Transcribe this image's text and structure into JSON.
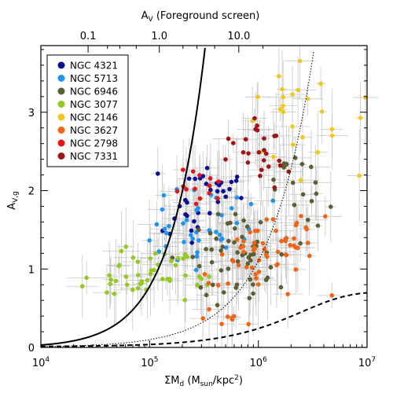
{
  "chart_data": {
    "type": "scatter",
    "title": "",
    "x_axis": {
      "label_main": "ΣM",
      "label_main_sub": "d",
      "label_unit_open": " (M",
      "label_unit_sub": "sun",
      "label_unit_mid": "/kpc",
      "label_unit_sup": "2",
      "label_unit_close": ")",
      "scale": "log",
      "range": [
        10000,
        10000000
      ],
      "tick_base": "10",
      "tick_exponents": [
        "4",
        "5",
        "6",
        "7"
      ]
    },
    "y_axis": {
      "label_main": "A",
      "label_sub": "V,g",
      "range": [
        0,
        3.85
      ],
      "ticks": [
        "0",
        "1",
        "2",
        "3"
      ]
    },
    "top_axis": {
      "label_main": "A",
      "label_sub": "V",
      "label_rest": " (Foreground screen)",
      "ticks": [
        "0.1",
        "1.0",
        "10.0"
      ]
    },
    "legend": {
      "position": "top-left",
      "entries": [
        {
          "name": "NGC  4321",
          "color": "#0a0f96"
        },
        {
          "name": "NGC  5713",
          "color": "#1e96ee"
        },
        {
          "name": "NGC  6946",
          "color": "#5e5e34"
        },
        {
          "name": "NGC  3077",
          "color": "#96c822"
        },
        {
          "name": "NGC  2146",
          "color": "#f0c81e"
        },
        {
          "name": "NGC  3627",
          "color": "#f06414"
        },
        {
          "name": "NGC  2798",
          "color": "#e61414"
        },
        {
          "name": "NGC  7331",
          "color": "#a01414"
        }
      ]
    },
    "series": [
      {
        "name": "NGC  4321",
        "color": "#0a0f96",
        "clusters": [
          {
            "x": 400000,
            "y": 2.05,
            "dex": 0.2,
            "dy": 0.18,
            "n": 22
          },
          {
            "x": 190000,
            "y": 1.6,
            "dex": 0.12,
            "dy": 0.15,
            "n": 12
          }
        ]
      },
      {
        "name": "NGC  5713",
        "color": "#1e96ee",
        "clusters": [
          {
            "x": 300000,
            "y": 1.5,
            "dex": 0.28,
            "dy": 0.25,
            "n": 40
          }
        ]
      },
      {
        "name": "NGC  6946",
        "color": "#5e5e34",
        "clusters": [
          {
            "x": 700000,
            "y": 1.15,
            "dex": 0.22,
            "dy": 0.28,
            "n": 55
          },
          {
            "x": 2000000,
            "y": 2.0,
            "dex": 0.18,
            "dy": 0.28,
            "n": 18
          }
        ]
      },
      {
        "name": "NGC  3077",
        "color": "#96c822",
        "clusters": [
          {
            "x": 130000,
            "y": 0.95,
            "dex": 0.28,
            "dy": 0.18,
            "n": 42
          },
          {
            "x": 40000,
            "y": 0.85,
            "dex": 0.12,
            "dy": 0.1,
            "n": 6
          }
        ]
      },
      {
        "name": "NGC  2146",
        "color": "#f0c81e",
        "clusters": [
          {
            "x": 2500000,
            "y": 2.9,
            "dex": 0.25,
            "dy": 0.35,
            "n": 26
          }
        ]
      },
      {
        "name": "NGC  3627",
        "color": "#f06414",
        "clusters": [
          {
            "x": 1000000,
            "y": 1.2,
            "dex": 0.25,
            "dy": 0.3,
            "n": 60
          },
          {
            "x": 550000,
            "y": 0.45,
            "dex": 0.12,
            "dy": 0.12,
            "n": 8
          }
        ]
      },
      {
        "name": "NGC  2798",
        "color": "#e61414",
        "clusters": [
          {
            "x": 250000,
            "y": 2.05,
            "dex": 0.18,
            "dy": 0.12,
            "n": 14
          }
        ]
      },
      {
        "name": "NGC  7331",
        "color": "#a01414",
        "clusters": [
          {
            "x": 1000000,
            "y": 2.55,
            "dex": 0.2,
            "dy": 0.22,
            "n": 25
          }
        ]
      }
    ],
    "model_curves": [
      {
        "name": "foreground-screen",
        "style": "solid",
        "a_per_dex": 0.3,
        "log_x0": 4.0
      },
      {
        "name": "dust-scaled",
        "style": "dotted",
        "a_per_dex": 0.04,
        "log_x0": 4.0
      },
      {
        "name": "mixed-saturating",
        "style": "dashed",
        "a_max": 0.7,
        "log_x0": 4.0
      }
    ],
    "error_bar_color": "#c8c8c8"
  }
}
